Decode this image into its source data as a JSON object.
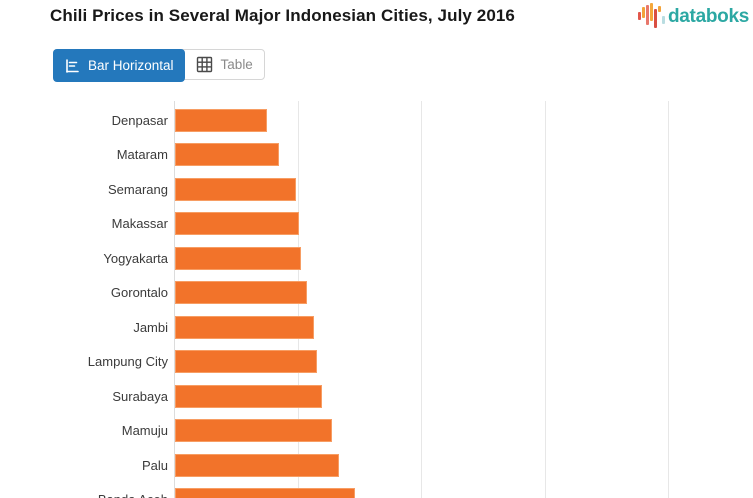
{
  "header": {
    "title": "Chili Prices in Several Major Indonesian Cities, July 2016",
    "brand": {
      "name": "databoks",
      "text_color": "#2ca8a3",
      "icon_bar_colors": [
        "#e2574c",
        "#f3a33a",
        "#e8776b",
        "#f5a83b",
        "#d94f43",
        "#f3a33a",
        "#b9dde1"
      ]
    }
  },
  "toolbar": {
    "tabs": [
      {
        "label": "Bar Horizontal",
        "icon": "bar-horizontal-icon",
        "active": true
      },
      {
        "label": "Table",
        "icon": "table-icon",
        "active": false
      }
    ],
    "active_tab_color": "#2478bc"
  },
  "chart_data": {
    "type": "bar",
    "orientation": "horizontal",
    "title": "Chili Prices in Several Major Indonesian Cities, July 2016",
    "categories": [
      "Denpasar",
      "Mataram",
      "Semarang",
      "Makassar",
      "Yogyakarta",
      "Gorontalo",
      "Jambi",
      "Lampung City",
      "Surabaya",
      "Mamuju",
      "Palu",
      "Banda Aceh"
    ],
    "values": [
      0.75,
      0.84,
      0.98,
      1.01,
      1.02,
      1.07,
      1.13,
      1.15,
      1.19,
      1.27,
      1.33,
      1.46
    ],
    "value_note": "x-axis tick labels are cropped out of the visible screenshot; values estimated in gridline units (1 = one vertical gridline spacing from the y-axis)",
    "xlabel": "",
    "ylabel": "",
    "xlim": [
      0,
      4.69
    ],
    "grid_values": [
      1,
      2,
      3,
      4
    ],
    "grid": "vertical",
    "legend": "none",
    "bar_color": "#f2732a"
  }
}
